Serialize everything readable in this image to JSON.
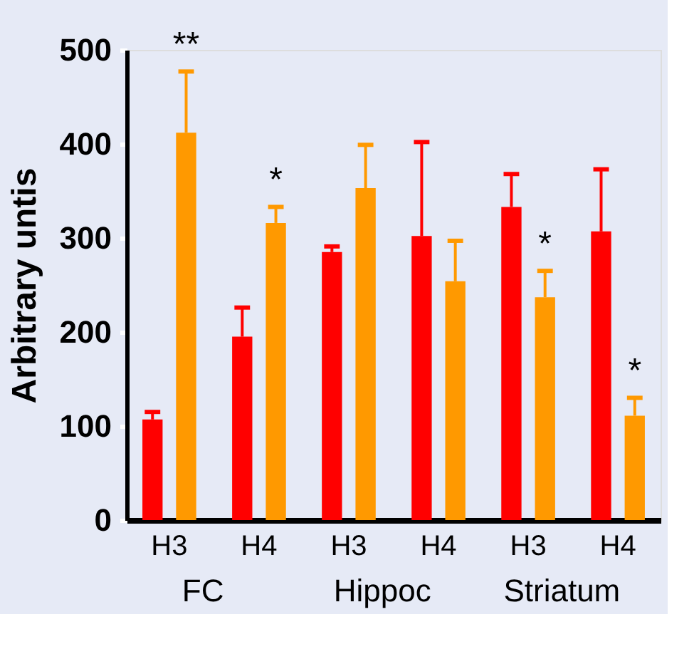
{
  "chart_data": {
    "type": "bar",
    "ylabel": "Arbitrary untis",
    "categories": [
      "H3",
      "H4",
      "H3",
      "H4",
      "H3",
      "H4"
    ],
    "series": [
      {
        "color": "#ff0000",
        "values": [
          107,
          195,
          285,
          302,
          333,
          307
        ],
        "errors": [
          [
            107,
            115
          ],
          [
            195,
            226
          ],
          [
            285,
            291
          ],
          [
            302,
            402
          ],
          [
            333,
            368
          ],
          [
            307,
            373
          ]
        ]
      },
      {
        "color": "#ff9900",
        "values": [
          412,
          316,
          353,
          254,
          237,
          111
        ],
        "value_labels": [
          "**",
          "*",
          null,
          null,
          "*",
          "*"
        ],
        "errors": [
          [
            412,
            477
          ],
          [
            316,
            333
          ],
          [
            353,
            399
          ],
          [
            254,
            297
          ],
          [
            237,
            265
          ],
          [
            111,
            130
          ]
        ]
      }
    ],
    "ylim": [
      0,
      500
    ],
    "yticks": [
      0,
      100,
      200,
      300,
      400,
      500
    ],
    "grid": false,
    "annotations": [
      "FC",
      "Hippoc",
      "Striatum"
    ]
  }
}
